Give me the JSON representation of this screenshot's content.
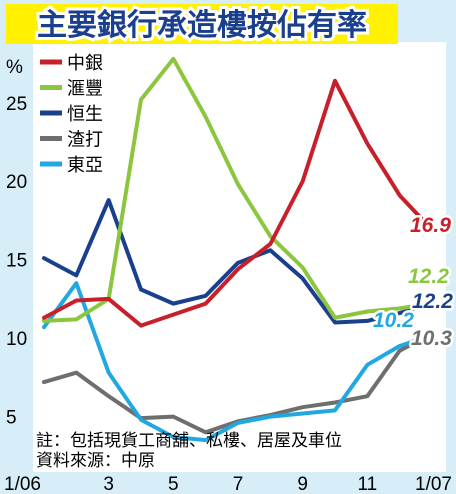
{
  "title": "主要銀行承造樓按佔有率",
  "note_line1": "註：包括現貨工商舖、私樓、居屋及車位",
  "note_line2": "資料來源：中原",
  "chart_data": {
    "type": "line",
    "ylabel": "%",
    "xlabel": "",
    "ylim": [
      3,
      29
    ],
    "xlim": [
      1,
      13
    ],
    "y_ticks": [
      5,
      10,
      15,
      20,
      25
    ],
    "x_ticks": [
      {
        "x": 1,
        "label": "1/06"
      },
      {
        "x": 3,
        "label": "3"
      },
      {
        "x": 5,
        "label": "5"
      },
      {
        "x": 7,
        "label": "7"
      },
      {
        "x": 9,
        "label": "9"
      },
      {
        "x": 11,
        "label": "11"
      },
      {
        "x": 13,
        "label": "1/07"
      }
    ],
    "x": [
      1,
      2,
      3,
      4,
      5,
      6,
      7,
      8,
      9,
      10,
      11,
      12,
      13
    ],
    "series": [
      {
        "name": "中銀",
        "color": "#c8202a",
        "end_label": "16.9",
        "values": [
          11.3,
          12.4,
          12.5,
          10.8,
          11.5,
          12.2,
          14.4,
          16.0,
          20.0,
          26.4,
          22.4,
          19.1,
          16.9
        ]
      },
      {
        "name": "滙豐",
        "color": "#8cc63f",
        "end_label": "12.2",
        "values": [
          11.1,
          11.2,
          12.5,
          25.2,
          27.8,
          24.1,
          19.8,
          16.5,
          14.5,
          11.3,
          11.7,
          11.9,
          12.2
        ]
      },
      {
        "name": "恒生",
        "color": "#1a3f8c",
        "end_label": "12.2",
        "values": [
          15.1,
          14.0,
          18.8,
          13.1,
          12.2,
          12.7,
          14.8,
          15.6,
          13.8,
          11.0,
          11.1,
          11.6,
          12.2
        ]
      },
      {
        "name": "渣打",
        "color": "#6e6e6e",
        "end_label": "10.3",
        "values": [
          7.2,
          7.8,
          6.3,
          4.9,
          5.0,
          4.0,
          4.7,
          5.1,
          5.6,
          5.9,
          6.3,
          9.2,
          10.3
        ]
      },
      {
        "name": "東亞",
        "color": "#22a8e0",
        "end_label": "10.2",
        "values": [
          10.7,
          13.5,
          7.8,
          4.8,
          3.7,
          3.5,
          4.6,
          5.0,
          5.2,
          5.4,
          8.3,
          9.5,
          10.2
        ]
      }
    ]
  }
}
